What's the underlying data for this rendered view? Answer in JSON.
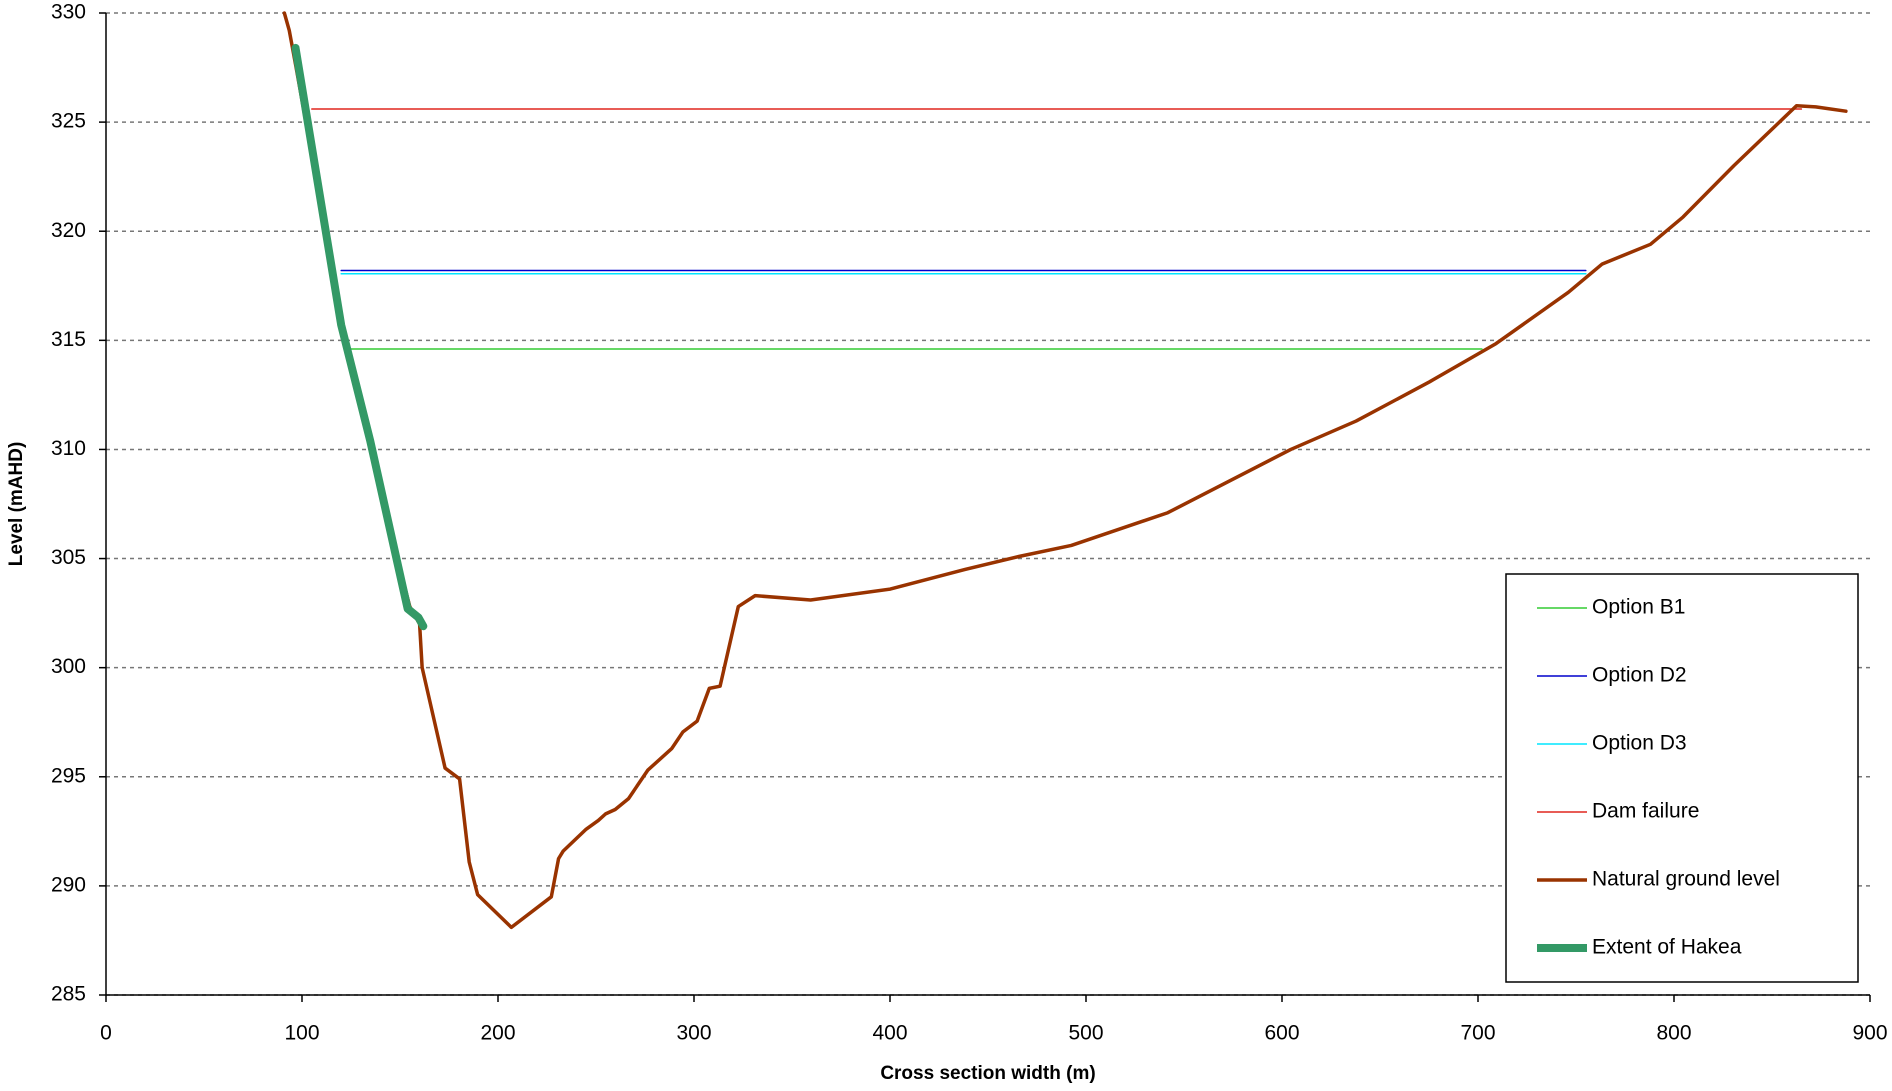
{
  "chart_data": {
    "type": "line",
    "xlabel": "Cross section width (m)",
    "ylabel": "Level (mAHD)",
    "xlim": [
      0,
      900
    ],
    "xticks": [
      0,
      100,
      200,
      300,
      400,
      500,
      600,
      700,
      800,
      900
    ],
    "ylim": [
      285,
      330
    ],
    "yticks": [
      285,
      290,
      295,
      300,
      305,
      310,
      315,
      320,
      325,
      330
    ],
    "grid": true,
    "legend": "lower right",
    "series": [
      {
        "name": "Option B1",
        "color": "#33cc33",
        "width": 1.5,
        "x": [
          124,
          702
        ],
        "values": [
          314.6,
          314.6
        ]
      },
      {
        "name": "Option D2",
        "color": "#0000cc",
        "width": 1.5,
        "x": [
          120,
          755
        ],
        "values": [
          318.2,
          318.2
        ]
      },
      {
        "name": "Option D3",
        "color": "#00e5ff",
        "width": 1.5,
        "x": [
          120,
          755
        ],
        "values": [
          318.05,
          318.05
        ]
      },
      {
        "name": "Dam failure",
        "color": "#e0261f",
        "width": 1.5,
        "x": [
          105,
          865
        ],
        "values": [
          325.6,
          325.6
        ]
      },
      {
        "name": "Natural ground level",
        "color": "#993300",
        "width": 3.5,
        "x": [
          91,
          93.5,
          97,
          120,
          140,
          155,
          160,
          161.3,
          173,
          180.4,
          185.3,
          189.6,
          206.8,
          227.2,
          230.9,
          233.3,
          245,
          251.2,
          254.9,
          259.8,
          266.6,
          276.4,
          288.7,
          294.3,
          301.6,
          307.8,
          313.3,
          322.6,
          331.2,
          359.5,
          400.1,
          438.3,
          466,
          492.5,
          541.7,
          604.5,
          637.8,
          675.3,
          709.2,
          746.1,
          763.4,
          788,
          804.6,
          830.5,
          862.5,
          872.3,
          887.7
        ],
        "values": [
          330,
          329.2,
          327.5,
          316,
          308,
          302.8,
          302,
          300,
          295.4,
          294.9,
          291.1,
          289.6,
          288.1,
          289.5,
          291.25,
          291.6,
          292.6,
          293,
          293.3,
          293.5,
          294,
          295.3,
          296.3,
          297.05,
          297.55,
          299.05,
          299.15,
          302.8,
          303.3,
          303.1,
          303.6,
          304.5,
          305.1,
          305.6,
          307.1,
          310,
          311.3,
          313.1,
          314.85,
          317.2,
          318.5,
          319.4,
          320.65,
          323,
          325.75,
          325.7,
          325.5
        ]
      },
      {
        "name": "Extent of Hakea",
        "color": "#339966",
        "width": 8,
        "x": [
          96.7,
          120,
          134.8,
          153.9,
          159.4,
          161.9
        ],
        "values": [
          328.4,
          315.7,
          310.4,
          302.7,
          302.3,
          301.9
        ]
      }
    ]
  }
}
